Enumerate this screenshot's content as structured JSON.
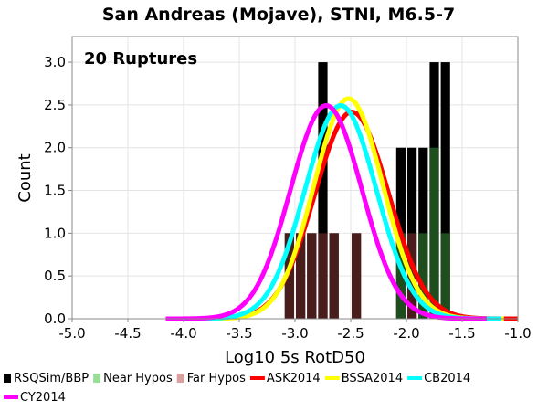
{
  "chart_data": {
    "type": "histogram",
    "title": "San Andreas (Mojave), STNI, M6.5-7",
    "xlabel": "Log10 5s RotD50",
    "ylabel": "Count",
    "annotation": "20 Ruptures",
    "xlim": [
      -5.0,
      -1.0
    ],
    "ylim": [
      0.0,
      3.3
    ],
    "x_ticks": [
      -5.0,
      -4.5,
      -4.0,
      -3.5,
      -3.0,
      -2.5,
      -2.0,
      -1.5,
      -1.0
    ],
    "x_tick_labels": [
      "-5.0",
      "-4.5",
      "-4.0",
      "-3.5",
      "-3.0",
      "-2.5",
      "-2.0",
      "-1.5",
      "-1.0"
    ],
    "y_ticks": [
      0.0,
      0.5,
      1.0,
      1.5,
      2.0,
      2.5,
      3.0
    ],
    "y_tick_labels": [
      "0.0",
      "0.5",
      "1.0",
      "1.5",
      "2.0",
      "2.5",
      "3.0"
    ],
    "grid": true,
    "bin_width": 0.1,
    "histogram": [
      {
        "x0": -3.1,
        "total": 1,
        "near": 0,
        "far": 1
      },
      {
        "x0": -3.0,
        "total": 1,
        "near": 0,
        "far": 1
      },
      {
        "x0": -2.9,
        "total": 1,
        "near": 0,
        "far": 1
      },
      {
        "x0": -2.8,
        "total": 3,
        "near": 0,
        "far": 1
      },
      {
        "x0": -2.7,
        "total": 1,
        "near": 0,
        "far": 1
      },
      {
        "x0": -2.6,
        "total": 0,
        "near": 0,
        "far": 0
      },
      {
        "x0": -2.5,
        "total": 1,
        "near": 0,
        "far": 1
      },
      {
        "x0": -2.4,
        "total": 0,
        "near": 0,
        "far": 0
      },
      {
        "x0": -2.3,
        "total": 0,
        "near": 0,
        "far": 0
      },
      {
        "x0": -2.2,
        "total": 0,
        "near": 0,
        "far": 0
      },
      {
        "x0": -2.1,
        "total": 2,
        "near": 1,
        "far": 0
      },
      {
        "x0": -2.0,
        "total": 2,
        "near": 0,
        "far": 1
      },
      {
        "x0": -1.9,
        "total": 2,
        "near": 1,
        "far": 0
      },
      {
        "x0": -1.8,
        "total": 3,
        "near": 2,
        "far": 0
      },
      {
        "x0": -1.7,
        "total": 3,
        "near": 1,
        "far": 0
      }
    ],
    "series": [
      {
        "name": "ASK2014",
        "mean": -2.49,
        "sigma": 0.33,
        "color": "#ff0000"
      },
      {
        "name": "BSSA2014",
        "mean": -2.52,
        "sigma": 0.31,
        "color": "#ffff00"
      },
      {
        "name": "CB2014",
        "mean": -2.59,
        "sigma": 0.32,
        "color": "#00ffff"
      },
      {
        "name": "CY2014",
        "mean": -2.72,
        "sigma": 0.32,
        "color": "#ff00ff"
      }
    ],
    "legend": {
      "position": "bottom",
      "items": [
        {
          "label": "RSQSim/BBP",
          "color": "#000000",
          "kind": "box"
        },
        {
          "label": "Near Hypos",
          "color": "#99dd99",
          "kind": "box"
        },
        {
          "label": "Far Hypos",
          "color": "#d9a0a0",
          "kind": "box"
        },
        {
          "label": "ASK2014",
          "color": "#ff0000",
          "kind": "line"
        },
        {
          "label": "BSSA2014",
          "color": "#ffff00",
          "kind": "line"
        },
        {
          "label": "CB2014",
          "color": "#00ffff",
          "kind": "line"
        },
        {
          "label": "CY2014",
          "color": "#ff00ff",
          "kind": "line"
        }
      ]
    },
    "colors": {
      "total": "#000000",
      "near": "#1e4d1e",
      "far": "#4a1d1d",
      "near_legend": "#99dd99",
      "far_legend": "#d9a0a0",
      "grid": "#e4e4e4",
      "plot_border": "#888888"
    }
  }
}
